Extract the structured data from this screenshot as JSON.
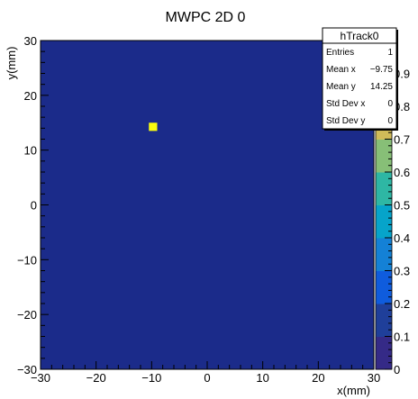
{
  "chart_data": {
    "type": "heatmap",
    "title": "MWPC 2D 0",
    "xlabel": "x(mm)",
    "ylabel": "y(mm)",
    "xlim": [
      -30,
      30
    ],
    "ylim": [
      -30,
      30
    ],
    "x_ticks": [
      -30,
      -20,
      -10,
      0,
      10,
      20,
      30
    ],
    "x_tick_labels": [
      "−30",
      "−20",
      "−10",
      "0",
      "10",
      "20",
      "30"
    ],
    "y_ticks": [
      -30,
      -20,
      -10,
      0,
      10,
      20,
      30
    ],
    "y_tick_labels": [
      "−30",
      "−20",
      "−10",
      "0",
      "10",
      "20",
      "30"
    ],
    "z_range": [
      0,
      1
    ],
    "z_ticks": [
      0,
      0.1,
      0.2,
      0.3,
      0.4,
      0.5,
      0.6,
      0.7,
      0.8,
      0.9
    ],
    "z_tick_labels": [
      "0",
      "0.1",
      "0.2",
      "0.3",
      "0.4",
      "0.5",
      "0.6",
      "0.7",
      "0.8",
      "0.9"
    ],
    "background_color": "#1b2b8a",
    "cells": [
      {
        "x": [
          -10.5,
          -9.0
        ],
        "y": [
          13.5,
          15.0
        ],
        "value": 1
      }
    ],
    "palette": [
      "#352a87",
      "#1f3f9a",
      "#0f5cdd",
      "#1481d6",
      "#06a4ca",
      "#2eb7a4",
      "#87bf77",
      "#d1bb59",
      "#fec832",
      "#f9fb0e"
    ],
    "stats": {
      "title": "hTrack0",
      "rows": [
        {
          "label": "Entries",
          "value": "1"
        },
        {
          "label": "Mean x",
          "value": "−9.75"
        },
        {
          "label": "Mean y",
          "value": "14.25"
        },
        {
          "label": "Std Dev x",
          "value": "0"
        },
        {
          "label": "Std Dev y",
          "value": "0"
        }
      ]
    }
  }
}
